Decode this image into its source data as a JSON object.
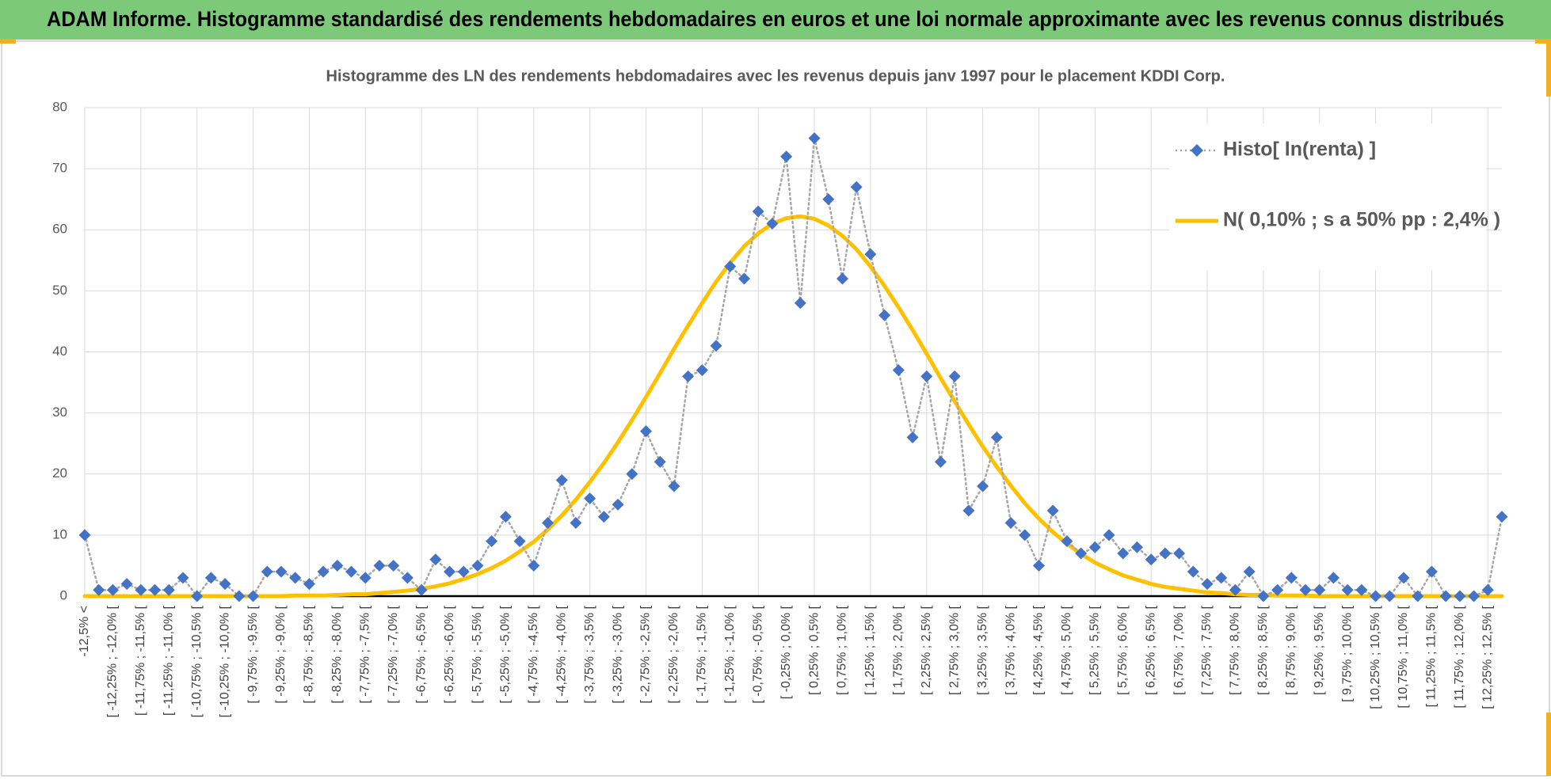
{
  "header": {
    "title": "ADAM Informe. Histogramme standardisé des rendements hebdomadaires en euros et une loi normale approximante avec les revenus connus distribués"
  },
  "chart_data": {
    "type": "line",
    "title": "Histogramme des LN des rendements hebdomadaires avec les revenus depuis janv 1997 pour le placement KDDI Corp.",
    "categories": [
      "-12,5% <",
      null,
      "[ -12,25% ; -12,0% [",
      null,
      "[ -11,75% ; -11,5% [",
      null,
      "[ -11,25% ; -11,0% [",
      null,
      "[ -10,75% ; -10,5% [",
      null,
      "[ -10,25% ; -10,0% [",
      null,
      "[ -9,75% ; -9,5% [",
      null,
      "[ -9,25% ; -9,0% [",
      null,
      "[ -8,75% ; -8,5% [",
      null,
      "[ -8,25% ; -8,0% [",
      null,
      "[ -7,75% ; -7,5% [",
      null,
      "[ -7,25% ; -7,0% [",
      null,
      "[ -6,75% ; -6,5% [",
      null,
      "[ -6,25% ; -6,0% [",
      null,
      "[ -5,75% ; -5,5% [",
      null,
      "[ -5,25% ; -5,0% [",
      null,
      "[ -4,75% ; -4,5% [",
      null,
      "[ -4,25% ; -4,0% [",
      null,
      "[ -3,75% ; -3,5% [",
      null,
      "[ -3,25% ; -3,0% [",
      null,
      "[ -2,75% ; -2,5% [",
      null,
      "[ -2,25% ; -2,0% [",
      null,
      "[ -1,75% ; -1,5% [",
      null,
      "[ -1,25% ; -1,0% [",
      null,
      "[ -0,75% ; -0,5% [",
      null,
      "[ -0,25% ; 0,0% [",
      null,
      "[ 0,25% ; 0,5% [",
      null,
      "[ 0,75% ; 1,0% [",
      null,
      "[ 1,25% ; 1,5% [",
      null,
      "[ 1,75% ; 2,0% [",
      null,
      "[ 2,25% ; 2,5% [",
      null,
      "[ 2,75% ; 3,0% [",
      null,
      "[ 3,25% ; 3,5% [",
      null,
      "[ 3,75% ; 4,0% [",
      null,
      "[ 4,25% ; 4,5% [",
      null,
      "[ 4,75% ; 5,0% [",
      null,
      "[ 5,25% ; 5,5% [",
      null,
      "[ 5,75% ; 6,0% [",
      null,
      "[ 6,25% ; 6,5% [",
      null,
      "[ 6,75% ; 7,0% [",
      null,
      "[ 7,25% ; 7,5% [",
      null,
      "[ 7,75% ; 8,0% [",
      null,
      "[ 8,25% ; 8,5% [",
      null,
      "[ 8,75% ; 9,0% [",
      null,
      "[ 9,25% ; 9,5% [",
      null,
      "[ 9,75% ; 10,0% [",
      null,
      "[ 10,25% ; 10,5% [",
      null,
      "[ 10,75% ; 11,0% [",
      null,
      "[ 11,25% ; 11,5% [",
      null,
      "[ 11,75% ; 12,0% [",
      null,
      "[ 12,25% ; 12,5% [",
      null
    ],
    "series": [
      {
        "name": "Histo[ ln(renta) ]",
        "color": "#4472c4",
        "line_color": "#a6a6a6",
        "marker": "diamond",
        "values": [
          10,
          1,
          1,
          2,
          1,
          1,
          1,
          3,
          0,
          3,
          2,
          0,
          0,
          4,
          4,
          3,
          2,
          4,
          5,
          4,
          3,
          5,
          5,
          3,
          1,
          6,
          4,
          4,
          5,
          9,
          13,
          9,
          5,
          12,
          19,
          12,
          16,
          13,
          15,
          20,
          27,
          22,
          18,
          36,
          37,
          41,
          54,
          52,
          63,
          61,
          72,
          48,
          75,
          65,
          52,
          67,
          56,
          46,
          37,
          26,
          36,
          22,
          36,
          14,
          18,
          26,
          12,
          10,
          5,
          14,
          9,
          7,
          8,
          10,
          7,
          8,
          6,
          7,
          7,
          4,
          2,
          3,
          1,
          4,
          0,
          1,
          3,
          1,
          1,
          3,
          1,
          1,
          0,
          0,
          3,
          0,
          4,
          0,
          0,
          0,
          1,
          13
        ]
      },
      {
        "name": "N( 0,10% ; s a 50% pp : 2,4% )",
        "color": "#ffc000",
        "marker": "none",
        "values": [
          0,
          0,
          0,
          0,
          0,
          0,
          0,
          0,
          0,
          0,
          0,
          0,
          0,
          0,
          0,
          0.1,
          0.1,
          0.1,
          0.2,
          0.3,
          0.3,
          0.5,
          0.7,
          0.9,
          1.2,
          1.6,
          2.1,
          2.8,
          3.6,
          4.6,
          5.8,
          7.3,
          8.9,
          10.9,
          13.2,
          15.8,
          18.7,
          21.8,
          25.2,
          28.8,
          32.6,
          36.5,
          40.5,
          44.3,
          48.0,
          51.5,
          54.6,
          57.3,
          59.4,
          61.0,
          61.9,
          62.2,
          61.8,
          60.7,
          59.0,
          56.8,
          54.0,
          50.8,
          47.3,
          43.6,
          39.7,
          35.7,
          31.9,
          28.1,
          24.5,
          21.2,
          18.1,
          15.2,
          12.7,
          10.5,
          8.6,
          6.9,
          5.5,
          4.4,
          3.4,
          2.7,
          2.0,
          1.5,
          1.2,
          0.9,
          0.6,
          0.5,
          0.3,
          0.2,
          0.2,
          0.1,
          0.1,
          0.1,
          0,
          0,
          0,
          0,
          0,
          0,
          0,
          0,
          0,
          0,
          0,
          0,
          0,
          0
        ]
      }
    ],
    "ylim": [
      0,
      80
    ],
    "yticks": [
      0,
      10,
      20,
      30,
      40,
      50,
      60,
      70,
      80
    ],
    "grid": true,
    "legend": "upper right"
  }
}
